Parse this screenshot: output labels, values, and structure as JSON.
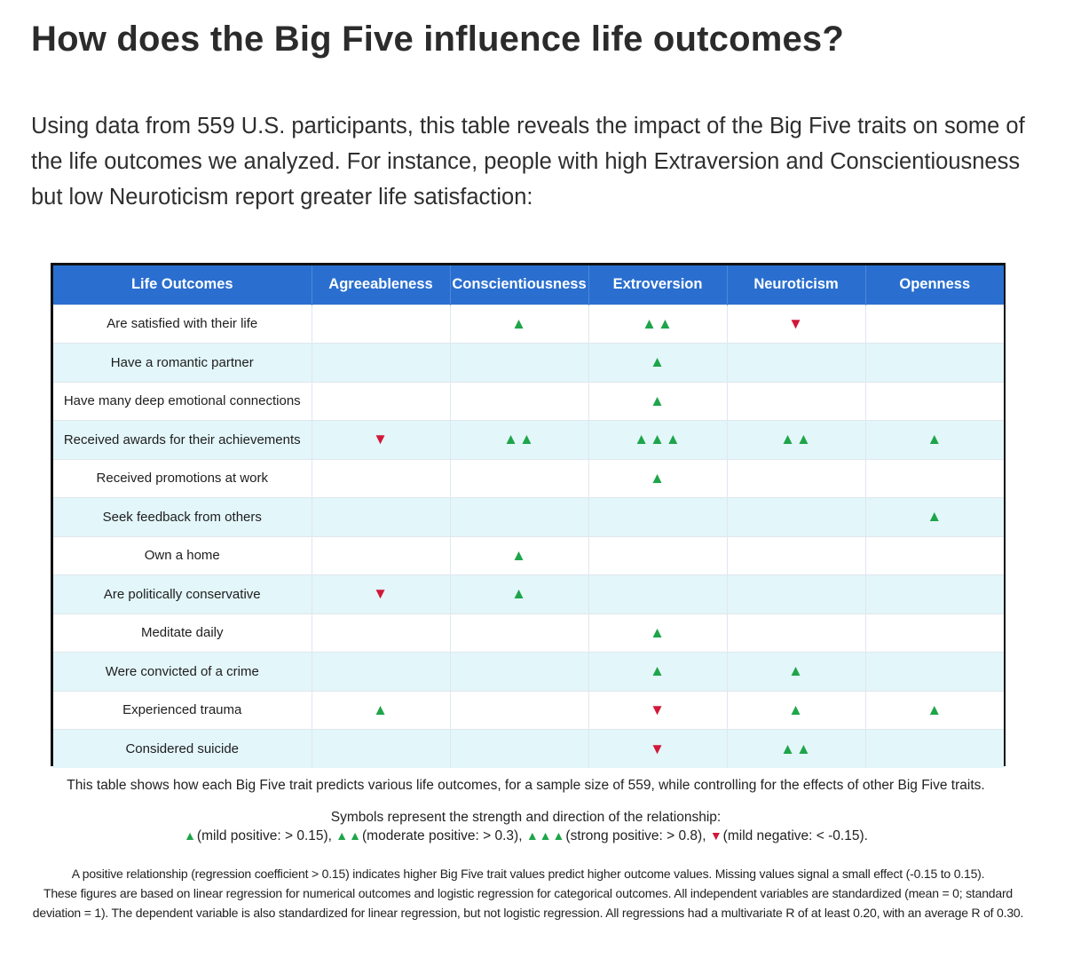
{
  "title": "How does the Big Five influence life outcomes?",
  "intro": "Using data from 559 U.S. participants, this table reveals the impact of the Big Five traits on some of the life outcomes we analyzed. For instance, people with high Extraversion and Conscientiousness but low Neuroticism report greater life satisfaction:",
  "colors": {
    "header": "#2a6fcf",
    "positive": "#1ea54a",
    "negative": "#d11838",
    "alt_row": "#e3f6fa"
  },
  "table": {
    "headers": [
      "Life Outcomes",
      "Agreeableness",
      "Conscientiousness",
      "Extroversion",
      "Neuroticism",
      "Openness"
    ],
    "rows": [
      {
        "outcome": "Are satisfied with their life",
        "cells": [
          "",
          "▲",
          "▲▲",
          "▼",
          ""
        ]
      },
      {
        "outcome": "Have a romantic partner",
        "cells": [
          "",
          "",
          "▲",
          "",
          ""
        ]
      },
      {
        "outcome": "Have many deep emotional connections",
        "cells": [
          "",
          "",
          "▲",
          "",
          ""
        ]
      },
      {
        "outcome": "Received awards for their achievements",
        "cells": [
          "▼",
          "▲▲",
          "▲▲▲",
          "▲▲",
          "▲"
        ]
      },
      {
        "outcome": "Received promotions at work",
        "cells": [
          "",
          "",
          "▲",
          "",
          ""
        ]
      },
      {
        "outcome": "Seek feedback from others",
        "cells": [
          "",
          "",
          "",
          "",
          "▲"
        ]
      },
      {
        "outcome": "Own a home",
        "cells": [
          "",
          "▲",
          "",
          "",
          ""
        ]
      },
      {
        "outcome": "Are politically conservative",
        "cells": [
          "▼",
          "▲",
          "",
          "",
          ""
        ]
      },
      {
        "outcome": "Meditate daily",
        "cells": [
          "",
          "",
          "▲",
          "",
          ""
        ]
      },
      {
        "outcome": "Were convicted of a crime",
        "cells": [
          "",
          "",
          "▲",
          "▲",
          ""
        ]
      },
      {
        "outcome": "Experienced trauma",
        "cells": [
          "▲",
          "",
          "▼",
          "▲",
          "▲"
        ]
      },
      {
        "outcome": "Considered suicide",
        "cells": [
          "",
          "",
          "▼",
          "▲▲",
          ""
        ]
      }
    ]
  },
  "caption": "This table shows how each Big Five trait predicts various life outcomes, for a sample size of 559, while controlling for the effects of other Big Five traits.",
  "legend": {
    "title": "Symbols represent the strength and direction of the relationship:",
    "items": [
      {
        "symbol": "▲",
        "text": "(mild positive: > 0.15),",
        "dir": "up"
      },
      {
        "symbol": "▲▲",
        "text": "(moderate positive: > 0.3),",
        "dir": "up"
      },
      {
        "symbol": "▲▲▲",
        "text": "(strong positive: > 0.8),",
        "dir": "up"
      },
      {
        "symbol": "▼",
        "text": "(mild negative: < -0.15).",
        "dir": "down"
      }
    ]
  },
  "footnote": [
    "A positive relationship (regression coefficient > 0.15) indicates higher Big Five trait values predict higher outcome values. Missing values signal a small effect (-0.15 to 0.15).",
    "These figures are based on linear regression for numerical outcomes and logistic regression for categorical outcomes. All independent variables are standardized (mean = 0; standard",
    "deviation = 1). The dependent variable is also standardized for linear regression, but not logistic regression. All regressions had a multivariate R of at least 0.20, with an average R of 0.30."
  ]
}
